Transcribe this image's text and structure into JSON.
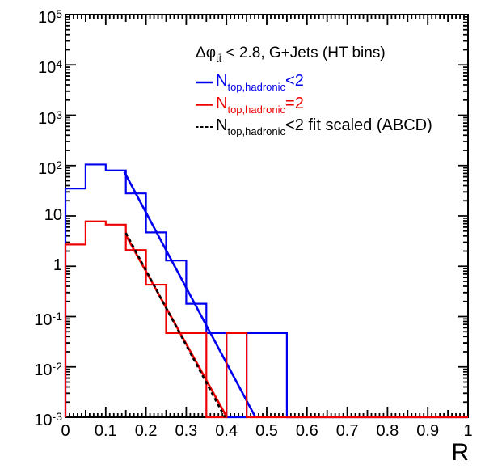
{
  "chart_data": {
    "type": "line",
    "subtype": "log-histogram-with-fits",
    "title": "",
    "xlabel": "R",
    "ylabel": "",
    "x_range": [
      0,
      1
    ],
    "ylog_range": [
      -3,
      5
    ],
    "grid": false,
    "bin_start": 0,
    "bin_width": 0.05,
    "x_tick_labels": [
      "0",
      "0.1",
      "0.2",
      "0.3",
      "0.4",
      "0.5",
      "0.6",
      "0.7",
      "0.8",
      "0.9",
      "1"
    ],
    "y_tick_labels": [
      {
        "mant": "10",
        "exp": "5"
      },
      {
        "mant": "10",
        "exp": "4"
      },
      {
        "mant": "10",
        "exp": "3"
      },
      {
        "mant": "10",
        "exp": "2"
      },
      {
        "mant": "10",
        "exp": ""
      },
      {
        "mant": "1",
        "exp": ""
      },
      {
        "mant": "10",
        "exp": "-1"
      },
      {
        "mant": "10",
        "exp": "-2"
      },
      {
        "mant": "10",
        "exp": "-3"
      }
    ],
    "series": [
      {
        "name": "N_top,hadronic<2",
        "type": "histogram",
        "color": "#0000ee",
        "values": [
          35,
          105,
          80,
          28,
          4.7,
          1.3,
          0.18,
          0.047,
          0,
          0.047,
          0.047,
          0,
          0,
          0,
          0,
          0,
          0,
          0,
          0,
          0
        ]
      },
      {
        "name": "N_top,hadronic<2 fit",
        "type": "fit-line",
        "color": "#0000ee",
        "dashed": false,
        "x0": 0.146,
        "v0": 75,
        "x1": 0.472,
        "v1": 0.001
      },
      {
        "name": "N_top,hadronic=2",
        "type": "histogram",
        "color": "#ee0000",
        "values": [
          2.7,
          7.8,
          6.7,
          2.1,
          0.43,
          0.047,
          0.047,
          0,
          0.047,
          0,
          0,
          0,
          0,
          0,
          0,
          0,
          0,
          0,
          0,
          0
        ]
      },
      {
        "name": "N_top,hadronic=2 fit",
        "type": "fit-line",
        "color": "#ee0000",
        "dashed": false,
        "x0": 0.149,
        "v0": 4.3,
        "x1": 0.401,
        "v1": 0.001
      },
      {
        "name": "N_top,hadronic<2 fit scaled (ABCD)",
        "type": "fit-line",
        "color": "#000000",
        "dashed": true,
        "x0": 0.15,
        "v0": 4.6,
        "x1": 0.396,
        "v1": 0.001
      }
    ],
    "legend": {
      "position": "top-center",
      "header": {
        "pre": "Δφ",
        "sub": "tt̄",
        "post": " < 2.8, G+Jets (HT bins)"
      },
      "entries": [
        {
          "label_plain": "N_top,hadronic<2",
          "pre": "N",
          "sub": "top,hadronic",
          "post": "<2",
          "color": "#0000ee",
          "line_style": "solid"
        },
        {
          "label_plain": "N_top,hadronic=2",
          "pre": "N",
          "sub": "top,hadronic",
          "post": "=2",
          "color": "#ee0000",
          "line_style": "solid"
        },
        {
          "label_plain": "N_top,hadronic<2 fit scaled (ABCD)",
          "pre": "N",
          "sub": "top,hadronic",
          "post": "<2 fit scaled (ABCD)",
          "color": "#000000",
          "line_style": "dashed"
        }
      ]
    },
    "colors": {
      "frame": "#000000",
      "background": "#ffffff"
    }
  }
}
